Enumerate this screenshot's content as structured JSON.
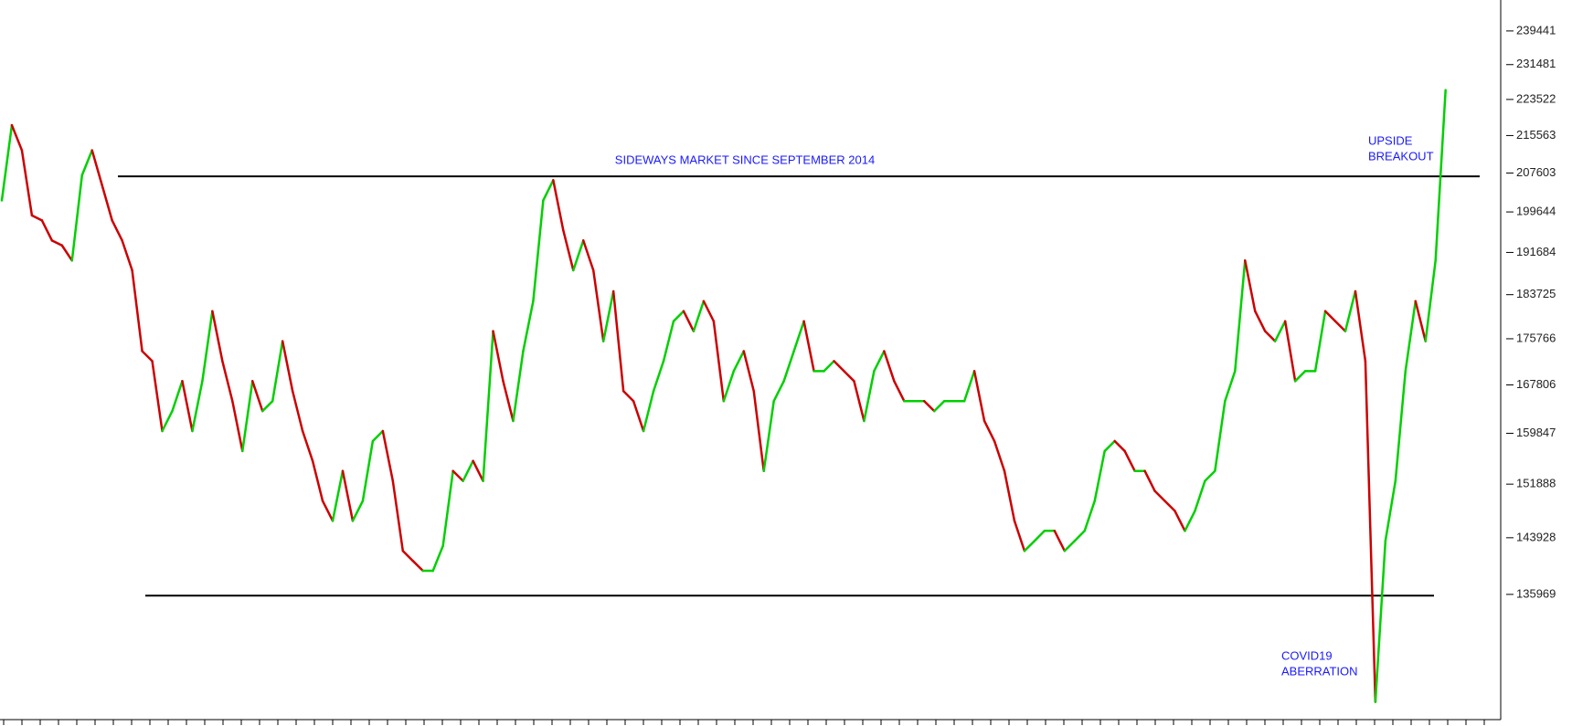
{
  "chart_data": {
    "type": "line",
    "log_scale": true,
    "up_color": "#00d000",
    "down_color": "#cc0000",
    "values": [
      201970,
      217820,
      212390,
      198950,
      197950,
      194000,
      193040,
      190140,
      207140,
      212390,
      205060,
      197950,
      194000,
      188280,
      173590,
      171870,
      160210,
      163460,
      168450,
      160210,
      168450,
      180710,
      171870,
      165100,
      157020,
      168450,
      163460,
      165100,
      175340,
      166770,
      160210,
      155470,
      149340,
      146390,
      153910,
      146390,
      149340,
      158600,
      160210,
      152380,
      142040,
      140620,
      139230,
      139230,
      142760,
      153910,
      152380,
      155470,
      152380,
      177110,
      168450,
      161840,
      173590,
      182530,
      201970,
      206110,
      195990,
      188280,
      194000,
      188280,
      175340,
      184350,
      166770,
      165100,
      160210,
      166770,
      171870,
      178890,
      180710,
      177110,
      182530,
      178890,
      165100,
      170150,
      173590,
      166770,
      153910,
      165100,
      168450,
      173590,
      178890,
      170150,
      170150,
      171870,
      170150,
      168450,
      161840,
      170150,
      173590,
      168450,
      165100,
      165100,
      165100,
      163460,
      165100,
      165100,
      165100,
      170150,
      161840,
      158600,
      153910,
      146390,
      142040,
      143470,
      144930,
      144930,
      142040,
      143470,
      144930,
      149340,
      157020,
      158600,
      157020,
      153910,
      153910,
      150850,
      149340,
      147850,
      144930,
      147850,
      152380,
      153910,
      165100,
      170150,
      190140,
      180710,
      177110,
      175340,
      178890,
      168450,
      170150,
      170150,
      180710,
      178890,
      177110,
      184350,
      171870,
      122050,
      143470,
      152380,
      170150,
      182530,
      175340,
      190140,
      225630
    ],
    "ylim": [
      119900,
      247000
    ],
    "yticks": [
      239441,
      231481,
      223522,
      215563,
      207603,
      199644,
      191684,
      183725,
      175766,
      167806,
      159847,
      151888,
      143928,
      135969
    ],
    "levels": [
      206900,
      135800
    ],
    "annotations": [
      "SIDEWAYS MARKET SINCE SEPTEMBER 2014",
      "UPSIDE",
      "BREAKOUT",
      "COVID19",
      "ABERRATION"
    ]
  }
}
